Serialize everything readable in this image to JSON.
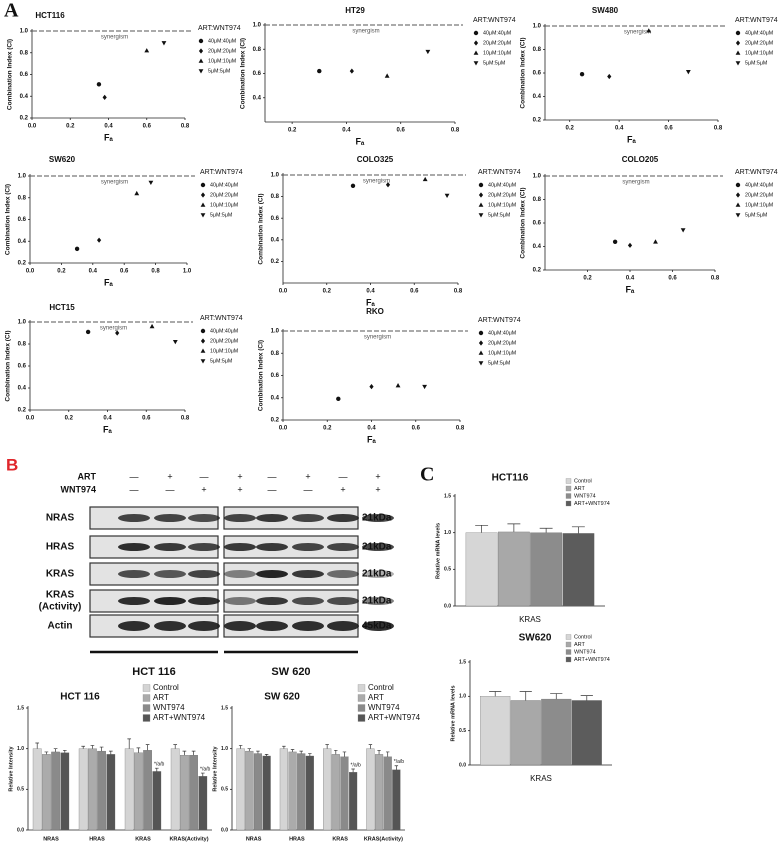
{
  "panel_labels": [
    "A",
    "B",
    "C"
  ],
  "chart_data": [
    {
      "type": "scatter",
      "title": "HCT116",
      "xlabel": "Fₐ",
      "ylabel": "Combination Index (CI)",
      "legend_title": "ART:WNT974",
      "color": "#111",
      "xlim": [
        0,
        0.8
      ],
      "xticks": [
        {
          "value": 0,
          "label": "0.0"
        },
        0.2,
        0.4,
        0.6,
        0.8
      ],
      "ylim": [
        0.2,
        1
      ],
      "yticks": [
        0.2,
        0.4,
        0.6,
        0.8,
        {
          "value": 1,
          "label": "1.0"
        }
      ],
      "reference": {
        "value": 1,
        "label": "synergism"
      },
      "series": [
        {
          "name": "40μM:40μM",
          "marker": "circle",
          "x": [
            0.35
          ],
          "values": [
            0.51
          ]
        },
        {
          "name": "20μM:20μM",
          "marker": "diamond",
          "x": [
            0.38
          ],
          "values": [
            0.39
          ]
        },
        {
          "name": "10μM:10μM",
          "marker": "triangle-up",
          "x": [
            0.6
          ],
          "values": [
            0.82
          ]
        },
        {
          "name": "5μM:5μM",
          "marker": "triangle-down",
          "x": [
            0.69
          ],
          "values": [
            0.89
          ]
        }
      ]
    },
    {
      "type": "scatter",
      "title": "HT29",
      "xlabel": "Fₐ",
      "ylabel": "Combination Index (CI)",
      "legend_title": "ART:WNT974",
      "color": "#111",
      "xlim": [
        0.1,
        0.8
      ],
      "xticks": [
        0.2,
        0.4,
        0.6,
        0.8
      ],
      "ylim": [
        0.2,
        1
      ],
      "yticks": [
        0.4,
        0.6,
        0.8,
        {
          "value": 1,
          "label": "1.0"
        }
      ],
      "reference": {
        "value": 1,
        "label": "synergism"
      },
      "series": [
        {
          "name": "40μM:40μM",
          "marker": "circle",
          "x": [
            0.3
          ],
          "values": [
            0.62
          ]
        },
        {
          "name": "20μM:20μM",
          "marker": "diamond",
          "x": [
            0.42
          ],
          "values": [
            0.62
          ]
        },
        {
          "name": "10μM:10μM",
          "marker": "triangle-up",
          "x": [
            0.55
          ],
          "values": [
            0.58
          ]
        },
        {
          "name": "5μM:5μM",
          "marker": "triangle-down",
          "x": [
            0.7
          ],
          "values": [
            0.78
          ]
        }
      ]
    },
    {
      "type": "scatter",
      "title": "SW480",
      "xlabel": "Fₐ",
      "ylabel": "Combination Index (CI)",
      "legend_title": "ART:WNT974",
      "color": "#111",
      "xlim": [
        0.1,
        0.8
      ],
      "xticks": [
        0.2,
        0.4,
        0.6,
        0.8
      ],
      "ylim": [
        0.2,
        1
      ],
      "yticks": [
        0.2,
        0.4,
        0.6,
        0.8,
        {
          "value": 1,
          "label": "1.0"
        }
      ],
      "reference": {
        "value": 1,
        "label": "synergism"
      },
      "series": [
        {
          "name": "40μM:40μM",
          "marker": "circle",
          "x": [
            0.25
          ],
          "values": [
            0.59
          ]
        },
        {
          "name": "20μM:20μM",
          "marker": "diamond",
          "x": [
            0.36
          ],
          "values": [
            0.57
          ]
        },
        {
          "name": "10μM:10μM",
          "marker": "triangle-up",
          "x": [
            0.52
          ],
          "values": [
            0.96
          ]
        },
        {
          "name": "5μM:5μM",
          "marker": "triangle-down",
          "x": [
            0.68
          ],
          "values": [
            0.61
          ]
        }
      ]
    },
    {
      "type": "scatter",
      "title": "SW620",
      "xlabel": "Fₐ",
      "ylabel": "Combination Index (CI)",
      "legend_title": "ART:WNT974",
      "color": "#111",
      "xlim": [
        0,
        1
      ],
      "xticks": [
        {
          "value": 0,
          "label": "0.0"
        },
        0.2,
        0.4,
        0.6,
        0.8,
        {
          "value": 1,
          "label": "1.0"
        }
      ],
      "ylim": [
        0.2,
        1
      ],
      "yticks": [
        0.2,
        0.4,
        0.6,
        0.8,
        {
          "value": 1,
          "label": "1.0"
        }
      ],
      "reference": {
        "value": 1,
        "label": "synergism"
      },
      "series": [
        {
          "name": "40μM:40μM",
          "marker": "circle",
          "x": [
            0.3
          ],
          "values": [
            0.33
          ]
        },
        {
          "name": "20μM:20μM",
          "marker": "diamond",
          "x": [
            0.44
          ],
          "values": [
            0.41
          ]
        },
        {
          "name": "10μM:10μM",
          "marker": "triangle-up",
          "x": [
            0.68
          ],
          "values": [
            0.84
          ]
        },
        {
          "name": "5μM:5μM",
          "marker": "triangle-down",
          "x": [
            0.77
          ],
          "values": [
            0.94
          ]
        }
      ]
    },
    {
      "type": "scatter",
      "title": "COLO325",
      "xlabel": "Fₐ",
      "ylabel": "Combination Index (CI)",
      "legend_title": "ART:WNT974",
      "color": "#111",
      "xlim": [
        0,
        0.8
      ],
      "xticks": [
        {
          "value": 0,
          "label": "0.0"
        },
        0.2,
        0.4,
        0.6,
        0.8
      ],
      "ylim": [
        0,
        1
      ],
      "yticks": [
        0.2,
        0.4,
        0.6,
        0.8,
        {
          "value": 1,
          "label": "1.0"
        }
      ],
      "reference": {
        "value": 1,
        "label": "synergism"
      },
      "series": [
        {
          "name": "40μM:40μM",
          "marker": "circle",
          "x": [
            0.32
          ],
          "values": [
            0.9
          ]
        },
        {
          "name": "20μM:20μM",
          "marker": "diamond",
          "x": [
            0.48
          ],
          "values": [
            0.91
          ]
        },
        {
          "name": "10μM:10μM",
          "marker": "triangle-up",
          "x": [
            0.65
          ],
          "values": [
            0.96
          ]
        },
        {
          "name": "5μM:5μM",
          "marker": "triangle-down",
          "x": [
            0.75
          ],
          "values": [
            0.81
          ]
        }
      ]
    },
    {
      "type": "scatter",
      "title": "COLO205",
      "xlabel": "Fₐ",
      "ylabel": "Combination Index (CI)",
      "legend_title": "ART:WNT974",
      "color": "#111",
      "xlim": [
        0,
        0.8
      ],
      "xticks": [
        0.2,
        0.4,
        0.6,
        0.8
      ],
      "ylim": [
        0.2,
        1
      ],
      "yticks": [
        0.2,
        0.4,
        0.6,
        0.8,
        {
          "value": 1,
          "label": "1.0"
        }
      ],
      "reference": {
        "value": 1,
        "label": "synergism"
      },
      "series": [
        {
          "name": "40μM:40μM",
          "marker": "circle",
          "x": [
            0.33
          ],
          "values": [
            0.44
          ]
        },
        {
          "name": "20μM:20μM",
          "marker": "diamond",
          "x": [
            0.4
          ],
          "values": [
            0.41
          ]
        },
        {
          "name": "10μM:10μM",
          "marker": "triangle-up",
          "x": [
            0.52
          ],
          "values": [
            0.44
          ]
        },
        {
          "name": "5μM:5μM",
          "marker": "triangle-down",
          "x": [
            0.65
          ],
          "values": [
            0.54
          ]
        }
      ]
    },
    {
      "type": "scatter",
      "title": "HCT15",
      "xlabel": "Fₐ",
      "ylabel": "Combination Index (CI)",
      "legend_title": "ART:WNT974",
      "color": "#111",
      "xlim": [
        0,
        0.8
      ],
      "xticks": [
        {
          "value": 0,
          "label": "0.0"
        },
        0.2,
        0.4,
        0.6,
        0.8
      ],
      "ylim": [
        0.2,
        1
      ],
      "yticks": [
        0.2,
        0.4,
        0.6,
        0.8,
        {
          "value": 1,
          "label": "1.0"
        }
      ],
      "reference": {
        "value": 1,
        "label": "synergism"
      },
      "series": [
        {
          "name": "40μM:40μM",
          "marker": "circle",
          "x": [
            0.3
          ],
          "values": [
            0.91
          ]
        },
        {
          "name": "20μM:20μM",
          "marker": "diamond",
          "x": [
            0.45
          ],
          "values": [
            0.9
          ]
        },
        {
          "name": "10μM:10μM",
          "marker": "triangle-up",
          "x": [
            0.63
          ],
          "values": [
            0.96
          ]
        },
        {
          "name": "5μM:5μM",
          "marker": "triangle-down",
          "x": [
            0.75
          ],
          "values": [
            0.82
          ]
        }
      ]
    },
    {
      "type": "scatter",
      "title": "RKO",
      "xlabel": "Fₐ",
      "ylabel": "Combination Index (CI)",
      "legend_title": "ART:WNT974",
      "color": "#111",
      "xlim": [
        0,
        0.8
      ],
      "xticks": [
        {
          "value": 0,
          "label": "0.0"
        },
        0.2,
        0.4,
        0.6,
        0.8
      ],
      "ylim": [
        0.2,
        1
      ],
      "yticks": [
        0.2,
        0.4,
        0.6,
        0.8,
        {
          "value": 1,
          "label": "1.0"
        }
      ],
      "reference": {
        "value": 1,
        "label": "synergism"
      },
      "series": [
        {
          "name": "40μM:40μM",
          "marker": "circle",
          "x": [
            0.25
          ],
          "values": [
            0.39
          ]
        },
        {
          "name": "20μM:20μM",
          "marker": "diamond",
          "x": [
            0.4
          ],
          "values": [
            0.5
          ]
        },
        {
          "name": "10μM:10μM",
          "marker": "triangle-up",
          "x": [
            0.52
          ],
          "values": [
            0.51
          ]
        },
        {
          "name": "5μM:5μM",
          "marker": "triangle-down",
          "x": [
            0.64
          ],
          "values": [
            0.5
          ]
        }
      ]
    },
    {
      "type": "bar",
      "title": "HCT 116",
      "ylabel": "Relative Intensity",
      "categories": [
        "NRAS",
        "HRAS",
        "KRAS",
        "KRAS(Activity)"
      ],
      "ylim": [
        0,
        1.5
      ],
      "yticks": [
        {
          "value": 0,
          "label": "0.0"
        },
        0.5,
        {
          "value": 1,
          "label": "1.0"
        },
        1.5
      ],
      "series": [
        {
          "name": "Control",
          "color": "#d4d4d4",
          "values": [
            1.0,
            1.0,
            1.0,
            1.0
          ],
          "errors": [
            0.07,
            0.03,
            0.12,
            0.05
          ]
        },
        {
          "name": "ART",
          "color": "#ababab",
          "values": [
            0.93,
            1.0,
            0.95,
            0.92
          ],
          "errors": [
            0.03,
            0.04,
            0.06,
            0.05
          ]
        },
        {
          "name": "WNT974",
          "color": "#8a8a8a",
          "values": [
            0.96,
            0.97,
            0.98,
            0.92
          ],
          "errors": [
            0.04,
            0.05,
            0.07,
            0.05
          ]
        },
        {
          "name": "ART+WNT974",
          "color": "#555555",
          "values": [
            0.95,
            0.93,
            0.72,
            0.66
          ],
          "errors": [
            0.03,
            0.04,
            0.04,
            0.04
          ]
        }
      ],
      "annotations": [
        {
          "category": "KRAS",
          "series": "ART+WNT974",
          "text": "*/a/b"
        },
        {
          "category": "KRAS(Activity)",
          "series": "ART+WNT974",
          "text": "*/a/b"
        }
      ]
    },
    {
      "type": "bar",
      "title": "SW 620",
      "ylabel": "Relative Intensity",
      "categories": [
        "NRAS",
        "HRAS",
        "KRAS",
        "KRAS(Activity)"
      ],
      "ylim": [
        0,
        1.5
      ],
      "yticks": [
        {
          "value": 0,
          "label": "0.0"
        },
        0.5,
        {
          "value": 1,
          "label": "1.0"
        },
        1.5
      ],
      "series": [
        {
          "name": "Control",
          "color": "#d4d4d4",
          "values": [
            1.0,
            1.0,
            1.0,
            1.0
          ],
          "errors": [
            0.04,
            0.03,
            0.05,
            0.05
          ]
        },
        {
          "name": "ART",
          "color": "#ababab",
          "values": [
            0.97,
            0.96,
            0.93,
            0.93
          ],
          "errors": [
            0.03,
            0.03,
            0.05,
            0.05
          ]
        },
        {
          "name": "WNT974",
          "color": "#8a8a8a",
          "values": [
            0.94,
            0.94,
            0.9,
            0.9
          ],
          "errors": [
            0.03,
            0.03,
            0.06,
            0.06
          ]
        },
        {
          "name": "ART+WNT974",
          "color": "#555555",
          "values": [
            0.91,
            0.91,
            0.71,
            0.74
          ],
          "errors": [
            0.02,
            0.03,
            0.04,
            0.05
          ]
        }
      ],
      "annotations": [
        {
          "category": "KRAS",
          "series": "ART+WNT974",
          "text": "*/a/b"
        },
        {
          "category": "KRAS(Activity)",
          "series": "ART+WNT974",
          "text": "*/a/b"
        }
      ]
    },
    {
      "type": "bar",
      "title": "HCT116",
      "ylabel": "Relative mRNA levels",
      "categories": [
        "KRAS"
      ],
      "ylim": [
        0,
        1.5
      ],
      "yticks": [
        {
          "value": 0,
          "label": "0.0"
        },
        0.5,
        {
          "value": 1,
          "label": "1.0"
        },
        1.5
      ],
      "series": [
        {
          "name": "Control",
          "color": "#d6d6d6",
          "values": [
            1.0
          ],
          "errors": [
            0.1
          ]
        },
        {
          "name": "ART",
          "color": "#a8a8a8",
          "values": [
            1.01
          ],
          "errors": [
            0.11
          ]
        },
        {
          "name": "WNT974",
          "color": "#8c8c8c",
          "values": [
            1.0
          ],
          "errors": [
            0.06
          ]
        },
        {
          "name": "ART+WNT974",
          "color": "#5c5c5c",
          "values": [
            0.99
          ],
          "errors": [
            0.09
          ]
        }
      ]
    },
    {
      "type": "bar",
      "title": "SW620",
      "ylabel": "Relative mRNA levels",
      "categories": [
        "KRAS"
      ],
      "ylim": [
        0,
        1.5
      ],
      "yticks": [
        {
          "value": 0,
          "label": "0.0"
        },
        0.5,
        {
          "value": 1,
          "label": "1.0"
        },
        1.5
      ],
      "series": [
        {
          "name": "Control",
          "color": "#d6d6d6",
          "values": [
            1.0
          ],
          "errors": [
            0.07
          ]
        },
        {
          "name": "ART",
          "color": "#a8a8a8",
          "values": [
            0.94
          ],
          "errors": [
            0.13
          ]
        },
        {
          "name": "WNT974",
          "color": "#8c8c8c",
          "values": [
            0.96
          ],
          "errors": [
            0.08
          ]
        },
        {
          "name": "ART+WNT974",
          "color": "#5c5c5c",
          "values": [
            0.94
          ],
          "errors": [
            0.07
          ]
        }
      ]
    }
  ],
  "blot": {
    "treatments": [
      {
        "label": "ART",
        "signs": [
          "—",
          "+",
          "—",
          "+",
          "—",
          "+",
          "—",
          "+"
        ]
      },
      {
        "label": "WNT974",
        "signs": [
          "—",
          "—",
          "+",
          "+",
          "—",
          "—",
          "+",
          "+"
        ]
      }
    ],
    "rows": [
      {
        "label": [
          "NRAS"
        ],
        "size": "21kDa"
      },
      {
        "label": [
          "HRAS"
        ],
        "size": "21kDa"
      },
      {
        "label": [
          "KRAS"
        ],
        "size": "21kDa"
      },
      {
        "label": [
          "KRAS",
          "(Activity)"
        ],
        "size": "21kDa"
      },
      {
        "label": [
          "Actin"
        ],
        "size": "45kDa"
      }
    ],
    "groups": [
      "HCT 116",
      "SW 620"
    ]
  }
}
